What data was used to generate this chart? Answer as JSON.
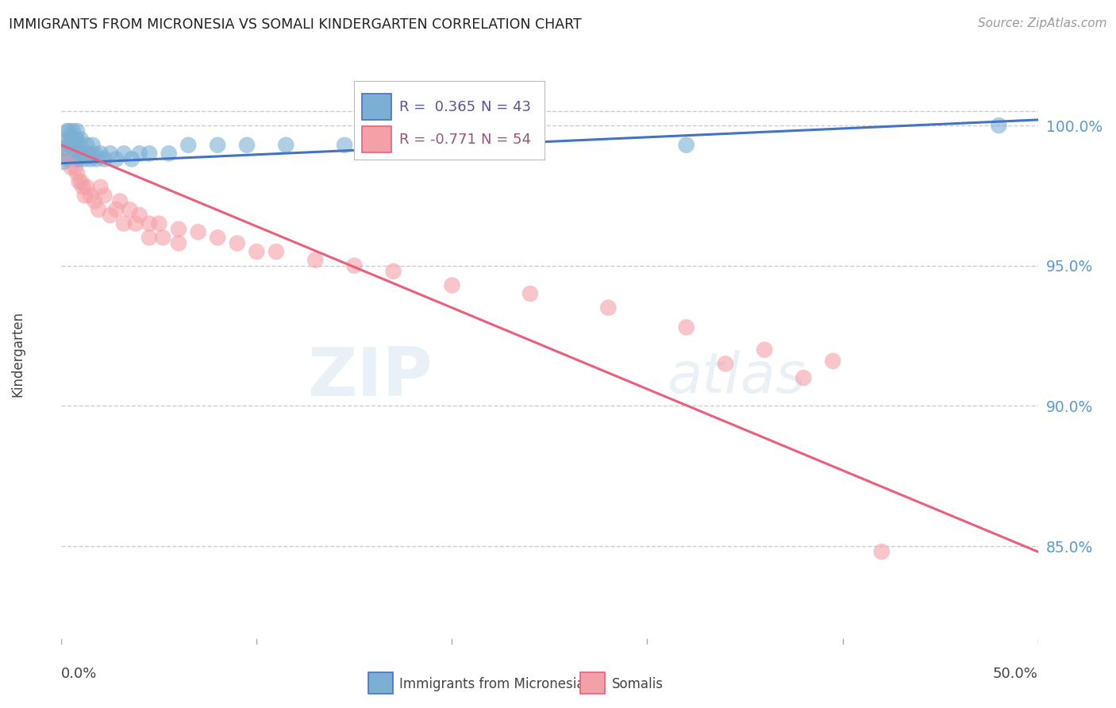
{
  "title": "IMMIGRANTS FROM MICRONESIA VS SOMALI KINDERGARTEN CORRELATION CHART",
  "source": "Source: ZipAtlas.com",
  "ylabel": "Kindergarten",
  "ytick_labels": [
    "100.0%",
    "95.0%",
    "90.0%",
    "85.0%"
  ],
  "ytick_values": [
    1.0,
    0.95,
    0.9,
    0.85
  ],
  "xmin": 0.0,
  "xmax": 0.5,
  "ymin": 0.815,
  "ymax": 1.022,
  "legend_R_blue": "R =  0.365",
  "legend_N_blue": "N = 43",
  "legend_R_pink": "R = -0.771",
  "legend_N_pink": "N = 54",
  "blue_color": "#7BAFD4",
  "pink_color": "#F4A0A8",
  "blue_line_color": "#4472C4",
  "pink_line_color": "#E8607A",
  "watermark_zip": "ZIP",
  "watermark_atlas": "atlas",
  "legend_blue_label": "Immigrants from Micronesia",
  "legend_pink_label": "Somalis",
  "blue_scatter_x": [
    0.001,
    0.002,
    0.003,
    0.003,
    0.004,
    0.004,
    0.005,
    0.005,
    0.006,
    0.006,
    0.007,
    0.007,
    0.008,
    0.008,
    0.009,
    0.009,
    0.01,
    0.01,
    0.011,
    0.012,
    0.013,
    0.014,
    0.015,
    0.016,
    0.017,
    0.018,
    0.02,
    0.022,
    0.025,
    0.028,
    0.032,
    0.036,
    0.04,
    0.045,
    0.055,
    0.065,
    0.08,
    0.095,
    0.115,
    0.145,
    0.22,
    0.32,
    0.48
  ],
  "blue_scatter_y": [
    0.987,
    0.992,
    0.998,
    0.995,
    0.993,
    0.998,
    0.996,
    0.993,
    0.998,
    0.993,
    0.991,
    0.995,
    0.995,
    0.998,
    0.993,
    0.988,
    0.99,
    0.995,
    0.99,
    0.988,
    0.993,
    0.99,
    0.988,
    0.993,
    0.99,
    0.988,
    0.99,
    0.988,
    0.99,
    0.988,
    0.99,
    0.988,
    0.99,
    0.99,
    0.99,
    0.993,
    0.993,
    0.993,
    0.993,
    0.993,
    0.998,
    0.993,
    1.0
  ],
  "pink_scatter_x": [
    0.001,
    0.002,
    0.003,
    0.003,
    0.004,
    0.004,
    0.005,
    0.005,
    0.006,
    0.006,
    0.007,
    0.007,
    0.008,
    0.008,
    0.009,
    0.01,
    0.011,
    0.012,
    0.013,
    0.015,
    0.017,
    0.019,
    0.022,
    0.025,
    0.028,
    0.032,
    0.038,
    0.045,
    0.052,
    0.06,
    0.035,
    0.04,
    0.05,
    0.06,
    0.07,
    0.08,
    0.09,
    0.1,
    0.11,
    0.13,
    0.15,
    0.17,
    0.2,
    0.24,
    0.28,
    0.32,
    0.36,
    0.395,
    0.34,
    0.38,
    0.02,
    0.03,
    0.045,
    0.42
  ],
  "pink_scatter_y": [
    0.993,
    0.99,
    0.99,
    0.988,
    0.988,
    0.993,
    0.99,
    0.985,
    0.988,
    0.993,
    0.985,
    0.988,
    0.99,
    0.983,
    0.98,
    0.98,
    0.978,
    0.975,
    0.978,
    0.975,
    0.973,
    0.97,
    0.975,
    0.968,
    0.97,
    0.965,
    0.965,
    0.96,
    0.96,
    0.958,
    0.97,
    0.968,
    0.965,
    0.963,
    0.962,
    0.96,
    0.958,
    0.955,
    0.955,
    0.952,
    0.95,
    0.948,
    0.943,
    0.94,
    0.935,
    0.928,
    0.92,
    0.916,
    0.915,
    0.91,
    0.978,
    0.973,
    0.965,
    0.848
  ],
  "blue_line_x": [
    0.0,
    0.5
  ],
  "blue_line_y": [
    0.9865,
    1.002
  ],
  "pink_line_x": [
    0.0,
    0.5
  ],
  "pink_line_y": [
    0.993,
    0.848
  ],
  "grid_color": "#CCCCCC",
  "background_color": "#FFFFFF",
  "right_label_color": "#5B9BD5",
  "grid_yticks_extra": [
    1.005,
    1.01
  ],
  "xtick_positions": [
    0.0,
    0.1,
    0.2,
    0.3,
    0.4,
    0.5
  ]
}
